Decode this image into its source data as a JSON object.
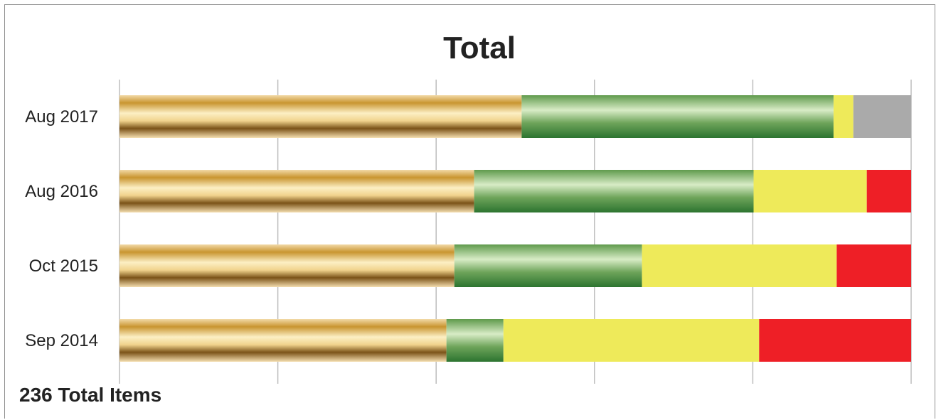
{
  "chart_data": {
    "type": "bar",
    "orientation": "horizontal",
    "stacked": true,
    "normalized": true,
    "title": "Total",
    "xlabel": "",
    "ylabel": "",
    "xlim": [
      0,
      100
    ],
    "grid": true,
    "legend": "none",
    "categories": [
      "Aug 2017",
      "Aug 2016",
      "Oct 2015",
      "Sep 2014"
    ],
    "series": [
      {
        "color": "#c9922e",
        "values": [
          50.8,
          44.8,
          42.3,
          41.3
        ]
      },
      {
        "color": "#4a8a3a",
        "values": [
          39.4,
          35.3,
          23.7,
          7.2
        ]
      },
      {
        "color": "#eeea5a",
        "values": [
          2.5,
          14.3,
          24.6,
          32.3
        ]
      },
      {
        "color": "#aaaaaa",
        "values": [
          7.3,
          0,
          0,
          0
        ]
      },
      {
        "color": "#ee1f26",
        "values": [
          0,
          5.6,
          9.4,
          19.2
        ]
      }
    ]
  },
  "footer": {
    "total_items_label": "236 Total Items"
  }
}
